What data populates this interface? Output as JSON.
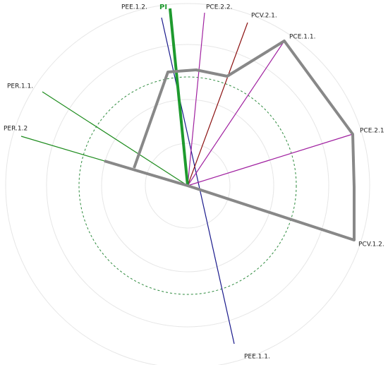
{
  "labels": {
    "pee12": "PEE.1.2.",
    "pi": "PI",
    "pce22": "PCE.2.2.",
    "pcv21": "PCV.2.1.",
    "pce11": "PCE.1.1.",
    "pce21": "PCE.2.1",
    "pcv12": "PCV.1.2.",
    "pee11": "PEE.1.1.",
    "per11": "PER.1.1.",
    "per12": "PER.1.2"
  }
}
